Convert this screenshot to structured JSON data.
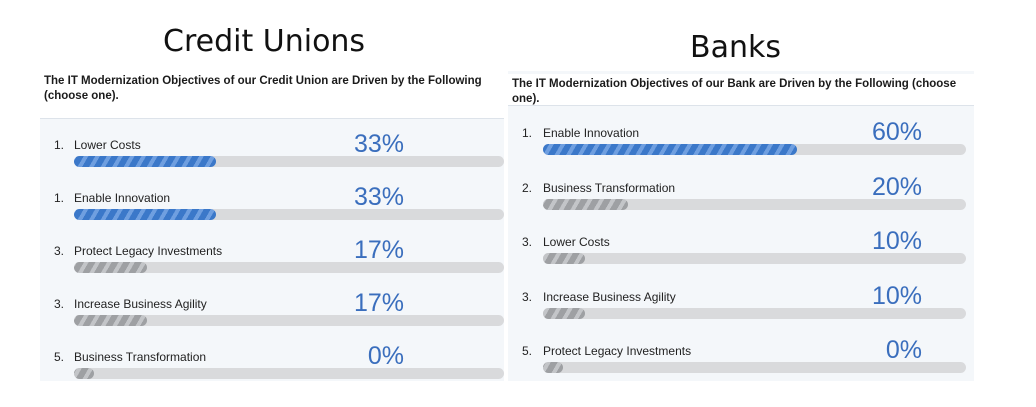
{
  "left_heading": "Credit Unions",
  "right_heading": "Banks",
  "colors": {
    "accent_blue": "#3b78c9",
    "accent_blue_light": "#6f9fe0",
    "gray_fill": "#9ea0a3",
    "gray_fill_light": "#c3c5c8",
    "percent_text": "#3a6ebd",
    "track": "#d9dadc"
  },
  "chart_data": [
    {
      "type": "bar",
      "title": "The IT Modernization Objectives of our Credit Union are Driven by the Following (choose one).",
      "items": [
        {
          "rank": "1.",
          "label": "Lower Costs",
          "value": 33,
          "value_text": "33%",
          "color": "blue"
        },
        {
          "rank": "1.",
          "label": "Enable Innovation",
          "value": 33,
          "value_text": "33%",
          "color": "blue"
        },
        {
          "rank": "3.",
          "label": "Protect Legacy Investments",
          "value": 17,
          "value_text": "17%",
          "color": "gray"
        },
        {
          "rank": "3.",
          "label": "Increase Business Agility",
          "value": 17,
          "value_text": "17%",
          "color": "gray"
        },
        {
          "rank": "5.",
          "label": "Business Transformation",
          "value": 0,
          "value_text": "0%",
          "color": "gray"
        }
      ]
    },
    {
      "type": "bar",
      "title": "The IT Modernization Objectives of our Bank are Driven by the Following (choose one).",
      "items": [
        {
          "rank": "1.",
          "label": "Enable Innovation",
          "value": 60,
          "value_text": "60%",
          "color": "blue"
        },
        {
          "rank": "2.",
          "label": "Business Transformation",
          "value": 20,
          "value_text": "20%",
          "color": "gray"
        },
        {
          "rank": "3.",
          "label": "Lower Costs",
          "value": 10,
          "value_text": "10%",
          "color": "gray"
        },
        {
          "rank": "3.",
          "label": "Increase Business Agility",
          "value": 10,
          "value_text": "10%",
          "color": "gray"
        },
        {
          "rank": "5.",
          "label": "Protect Legacy Investments",
          "value": 0,
          "value_text": "0%",
          "color": "gray"
        }
      ]
    }
  ]
}
